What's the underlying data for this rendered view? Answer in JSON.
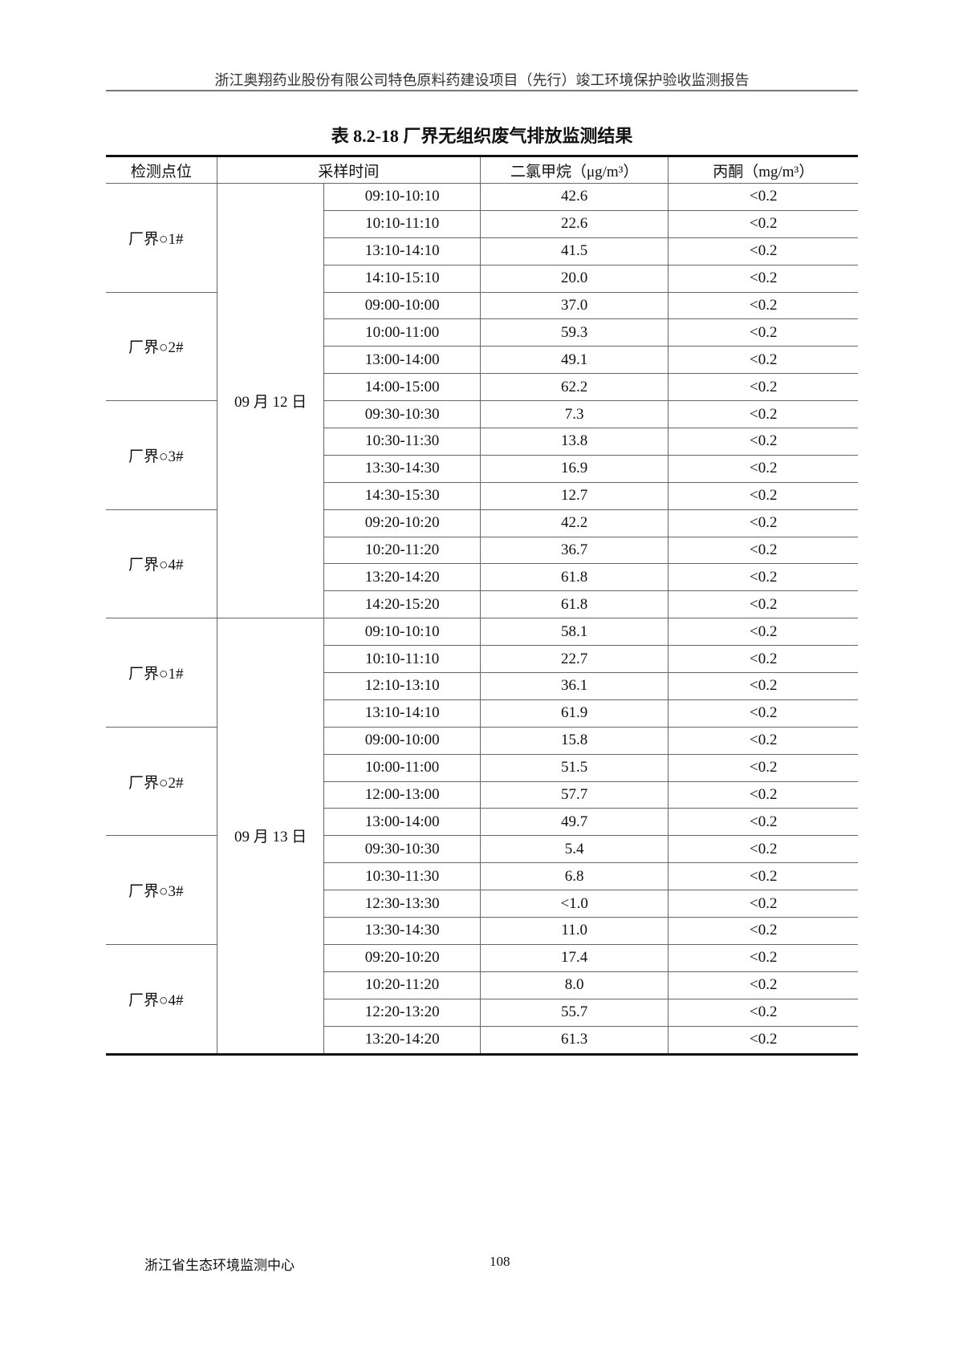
{
  "header": {
    "text": "浙江奥翔药业股份有限公司特色原料药建设项目（先行）竣工环境保护验收监测报告"
  },
  "title": "表 8.2-18  厂界无组织废气排放监测结果",
  "table": {
    "columns": [
      "检测点位",
      "采样时间",
      "二氯甲烷（μg/m³）",
      "丙酮（mg/m³）"
    ],
    "groups": [
      {
        "date": "09 月 12 日",
        "sites": [
          {
            "site": "厂界○1#",
            "rows": [
              [
                "09:10-10:10",
                "42.6",
                "<0.2"
              ],
              [
                "10:10-11:10",
                "22.6",
                "<0.2"
              ],
              [
                "13:10-14:10",
                "41.5",
                "<0.2"
              ],
              [
                "14:10-15:10",
                "20.0",
                "<0.2"
              ]
            ]
          },
          {
            "site": "厂界○2#",
            "rows": [
              [
                "09:00-10:00",
                "37.0",
                "<0.2"
              ],
              [
                "10:00-11:00",
                "59.3",
                "<0.2"
              ],
              [
                "13:00-14:00",
                "49.1",
                "<0.2"
              ],
              [
                "14:00-15:00",
                "62.2",
                "<0.2"
              ]
            ]
          },
          {
            "site": "厂界○3#",
            "rows": [
              [
                "09:30-10:30",
                "7.3",
                "<0.2"
              ],
              [
                "10:30-11:30",
                "13.8",
                "<0.2"
              ],
              [
                "13:30-14:30",
                "16.9",
                "<0.2"
              ],
              [
                "14:30-15:30",
                "12.7",
                "<0.2"
              ]
            ]
          },
          {
            "site": "厂界○4#",
            "rows": [
              [
                "09:20-10:20",
                "42.2",
                "<0.2"
              ],
              [
                "10:20-11:20",
                "36.7",
                "<0.2"
              ],
              [
                "13:20-14:20",
                "61.8",
                "<0.2"
              ],
              [
                "14:20-15:20",
                "61.8",
                "<0.2"
              ]
            ]
          }
        ]
      },
      {
        "date": "09 月 13 日",
        "sites": [
          {
            "site": "厂界○1#",
            "rows": [
              [
                "09:10-10:10",
                "58.1",
                "<0.2"
              ],
              [
                "10:10-11:10",
                "22.7",
                "<0.2"
              ],
              [
                "12:10-13:10",
                "36.1",
                "<0.2"
              ],
              [
                "13:10-14:10",
                "61.9",
                "<0.2"
              ]
            ]
          },
          {
            "site": "厂界○2#",
            "rows": [
              [
                "09:00-10:00",
                "15.8",
                "<0.2"
              ],
              [
                "10:00-11:00",
                "51.5",
                "<0.2"
              ],
              [
                "12:00-13:00",
                "57.7",
                "<0.2"
              ],
              [
                "13:00-14:00",
                "49.7",
                "<0.2"
              ]
            ]
          },
          {
            "site": "厂界○3#",
            "rows": [
              [
                "09:30-10:30",
                "5.4",
                "<0.2"
              ],
              [
                "10:30-11:30",
                "6.8",
                "<0.2"
              ],
              [
                "12:30-13:30",
                "<1.0",
                "<0.2"
              ],
              [
                "13:30-14:30",
                "11.0",
                "<0.2"
              ]
            ]
          },
          {
            "site": "厂界○4#",
            "rows": [
              [
                "09:20-10:20",
                "17.4",
                "<0.2"
              ],
              [
                "10:20-11:20",
                "8.0",
                "<0.2"
              ],
              [
                "12:20-13:20",
                "55.7",
                "<0.2"
              ],
              [
                "13:20-14:20",
                "61.3",
                "<0.2"
              ]
            ]
          }
        ]
      }
    ]
  },
  "footer": {
    "org": "浙江省生态环境监测中心",
    "page": "108"
  }
}
